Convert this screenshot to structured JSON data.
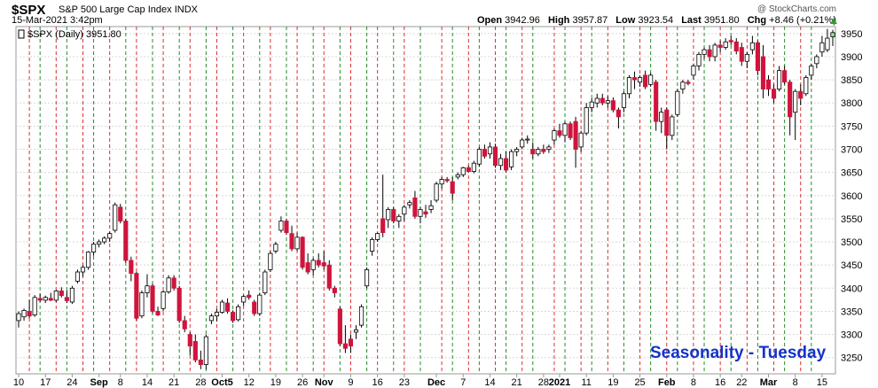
{
  "header": {
    "symbol": "$SPX",
    "name": "S&P 500 Large Cap Index",
    "exchange": "INDX",
    "datetime": "15-Mar-2021 3:42pm",
    "credit": "@ StockCharts.com",
    "open_label": "Open",
    "open_value": "3942.96",
    "high_label": "High",
    "high_value": "3957.87",
    "low_label": "Low",
    "low_value": "3923.54",
    "last_label": "Last",
    "last_value": "3951.80",
    "chg_label": "Chg",
    "chg_value": "+8.46 (+0.21%)"
  },
  "legend": {
    "text": "$SPX (Daily) 3951.80"
  },
  "annotation": "Seasonality - Tuesday",
  "colors": {
    "up": "#ffffff",
    "down": "#d0143c",
    "outline": "#000000",
    "last_bar": "#90ee90",
    "green_line": "#2a8a2a",
    "red_line": "#d83030",
    "grid": "#d8d8d8",
    "seasonality_text": "#1432c8"
  },
  "chart_data": {
    "type": "candlestick",
    "ylim": [
      3215,
      3965
    ],
    "y_ticks": [
      3250,
      3300,
      3350,
      3400,
      3450,
      3500,
      3550,
      3600,
      3650,
      3700,
      3750,
      3800,
      3850,
      3900,
      3950
    ],
    "x_labels": [
      "10",
      "17",
      "24",
      "Sep",
      "8",
      "14",
      "21",
      "28",
      "Oct5",
      "12",
      "19",
      "26",
      "Nov",
      "9",
      "16",
      "23",
      "Dec",
      "7",
      "14",
      "21",
      "28",
      "2021",
      "11",
      "19",
      "25",
      "Feb",
      "8",
      "16",
      "22",
      "Mar",
      "8",
      "15"
    ],
    "x_label_bold": [
      "Sep",
      "Oct5",
      "Nov",
      "Dec",
      "2021",
      "Feb",
      "Mar"
    ],
    "x_label_index": [
      0,
      5,
      10,
      15,
      19,
      24,
      29,
      34,
      38,
      43,
      48,
      53,
      57,
      62,
      67,
      72,
      78,
      83,
      88,
      93,
      98,
      101,
      106,
      111,
      116,
      121,
      126,
      131,
      135,
      140,
      145,
      150
    ],
    "vertical_markers_green_index": [
      4,
      9,
      14,
      20,
      25,
      30,
      35,
      40,
      45,
      50,
      55,
      60,
      65,
      70,
      75,
      81,
      86,
      91,
      96,
      102,
      107,
      113,
      118,
      123,
      128,
      133,
      138,
      143,
      148
    ],
    "vertical_markers_red_index": [
      2,
      7,
      12,
      17,
      22,
      27,
      32,
      37,
      42,
      47,
      52,
      57,
      62,
      67,
      72,
      79,
      84,
      89,
      94,
      100,
      105,
      110,
      116,
      121,
      126,
      131,
      136,
      141,
      146
    ],
    "candles": [
      {
        "o": 3330,
        "h": 3350,
        "l": 3315,
        "c": 3345
      },
      {
        "o": 3338,
        "h": 3356,
        "l": 3330,
        "c": 3352
      },
      {
        "o": 3350,
        "h": 3375,
        "l": 3335,
        "c": 3340
      },
      {
        "o": 3342,
        "h": 3385,
        "l": 3338,
        "c": 3380
      },
      {
        "o": 3378,
        "h": 3388,
        "l": 3370,
        "c": 3374
      },
      {
        "o": 3374,
        "h": 3384,
        "l": 3368,
        "c": 3380
      },
      {
        "o": 3378,
        "h": 3390,
        "l": 3372,
        "c": 3374
      },
      {
        "o": 3374,
        "h": 3396,
        "l": 3370,
        "c": 3394
      },
      {
        "o": 3394,
        "h": 3402,
        "l": 3380,
        "c": 3384
      },
      {
        "o": 3380,
        "h": 3395,
        "l": 3368,
        "c": 3373
      },
      {
        "o": 3370,
        "h": 3405,
        "l": 3366,
        "c": 3400
      },
      {
        "o": 3415,
        "h": 3440,
        "l": 3410,
        "c": 3435
      },
      {
        "o": 3435,
        "h": 3450,
        "l": 3425,
        "c": 3445
      },
      {
        "o": 3445,
        "h": 3480,
        "l": 3440,
        "c": 3478
      },
      {
        "o": 3478,
        "h": 3500,
        "l": 3470,
        "c": 3495
      },
      {
        "o": 3495,
        "h": 3505,
        "l": 3488,
        "c": 3500
      },
      {
        "o": 3500,
        "h": 3512,
        "l": 3495,
        "c": 3508
      },
      {
        "o": 3508,
        "h": 3522,
        "l": 3500,
        "c": 3518
      },
      {
        "o": 3525,
        "h": 3585,
        "l": 3520,
        "c": 3580
      },
      {
        "o": 3575,
        "h": 3582,
        "l": 3540,
        "c": 3545
      },
      {
        "o": 3545,
        "h": 3550,
        "l": 3455,
        "c": 3460
      },
      {
        "o": 3460,
        "h": 3468,
        "l": 3415,
        "c": 3432
      },
      {
        "o": 3432,
        "h": 3435,
        "l": 3330,
        "c": 3335
      },
      {
        "o": 3340,
        "h": 3395,
        "l": 3335,
        "c": 3390
      },
      {
        "o": 3390,
        "h": 3430,
        "l": 3380,
        "c": 3405
      },
      {
        "o": 3405,
        "h": 3410,
        "l": 3345,
        "c": 3350
      },
      {
        "o": 3350,
        "h": 3360,
        "l": 3340,
        "c": 3342
      },
      {
        "o": 3356,
        "h": 3395,
        "l": 3350,
        "c": 3392
      },
      {
        "o": 3392,
        "h": 3428,
        "l": 3388,
        "c": 3422
      },
      {
        "o": 3422,
        "h": 3428,
        "l": 3395,
        "c": 3400
      },
      {
        "o": 3400,
        "h": 3405,
        "l": 3325,
        "c": 3330
      },
      {
        "o": 3330,
        "h": 3340,
        "l": 3305,
        "c": 3312
      },
      {
        "o": 3300,
        "h": 3305,
        "l": 3255,
        "c": 3275
      },
      {
        "o": 3285,
        "h": 3300,
        "l": 3240,
        "c": 3245
      },
      {
        "o": 3245,
        "h": 3265,
        "l": 3225,
        "c": 3235
      },
      {
        "o": 3235,
        "h": 3300,
        "l": 3225,
        "c": 3295
      },
      {
        "o": 3330,
        "h": 3345,
        "l": 3322,
        "c": 3340
      },
      {
        "o": 3340,
        "h": 3355,
        "l": 3328,
        "c": 3348
      },
      {
        "o": 3348,
        "h": 3375,
        "l": 3345,
        "c": 3370
      },
      {
        "o": 3368,
        "h": 3378,
        "l": 3345,
        "c": 3350
      },
      {
        "o": 3348,
        "h": 3352,
        "l": 3325,
        "c": 3330
      },
      {
        "o": 3332,
        "h": 3365,
        "l": 3328,
        "c": 3360
      },
      {
        "o": 3370,
        "h": 3385,
        "l": 3362,
        "c": 3382
      },
      {
        "o": 3385,
        "h": 3395,
        "l": 3375,
        "c": 3380
      },
      {
        "o": 3370,
        "h": 3375,
        "l": 3340,
        "c": 3345
      },
      {
        "o": 3345,
        "h": 3390,
        "l": 3340,
        "c": 3385
      },
      {
        "o": 3390,
        "h": 3440,
        "l": 3385,
        "c": 3435
      },
      {
        "o": 3440,
        "h": 3480,
        "l": 3435,
        "c": 3475
      },
      {
        "o": 3480,
        "h": 3500,
        "l": 3475,
        "c": 3495
      },
      {
        "o": 3525,
        "h": 3555,
        "l": 3520,
        "c": 3545
      },
      {
        "o": 3545,
        "h": 3550,
        "l": 3515,
        "c": 3520
      },
      {
        "o": 3518,
        "h": 3535,
        "l": 3480,
        "c": 3485
      },
      {
        "o": 3485,
        "h": 3520,
        "l": 3480,
        "c": 3510
      },
      {
        "o": 3510,
        "h": 3512,
        "l": 3440,
        "c": 3445
      },
      {
        "o": 3455,
        "h": 3475,
        "l": 3430,
        "c": 3435
      },
      {
        "o": 3440,
        "h": 3465,
        "l": 3428,
        "c": 3460
      },
      {
        "o": 3460,
        "h": 3475,
        "l": 3445,
        "c": 3450
      },
      {
        "o": 3455,
        "h": 3480,
        "l": 3440,
        "c": 3448
      },
      {
        "o": 3450,
        "h": 3460,
        "l": 3395,
        "c": 3400
      },
      {
        "o": 3400,
        "h": 3405,
        "l": 3380,
        "c": 3390
      },
      {
        "o": 3355,
        "h": 3360,
        "l": 3275,
        "c": 3280
      },
      {
        "o": 3280,
        "h": 3320,
        "l": 3260,
        "c": 3270
      },
      {
        "o": 3290,
        "h": 3300,
        "l": 3260,
        "c": 3275
      },
      {
        "o": 3305,
        "h": 3320,
        "l": 3290,
        "c": 3310
      },
      {
        "o": 3320,
        "h": 3365,
        "l": 3315,
        "c": 3360
      },
      {
        "o": 3405,
        "h": 3445,
        "l": 3400,
        "c": 3440
      },
      {
        "o": 3480,
        "h": 3510,
        "l": 3470,
        "c": 3505
      },
      {
        "o": 3505,
        "h": 3520,
        "l": 3500,
        "c": 3518
      },
      {
        "o": 3550,
        "h": 3645,
        "l": 3510,
        "c": 3520
      },
      {
        "o": 3548,
        "h": 3575,
        "l": 3530,
        "c": 3570
      },
      {
        "o": 3570,
        "h": 3575,
        "l": 3540,
        "c": 3545
      },
      {
        "o": 3545,
        "h": 3560,
        "l": 3530,
        "c": 3555
      },
      {
        "o": 3560,
        "h": 3580,
        "l": 3545,
        "c": 3575
      },
      {
        "o": 3580,
        "h": 3590,
        "l": 3572,
        "c": 3585
      },
      {
        "o": 3595,
        "h": 3610,
        "l": 3550,
        "c": 3555
      },
      {
        "o": 3555,
        "h": 3575,
        "l": 3540,
        "c": 3570
      },
      {
        "o": 3565,
        "h": 3580,
        "l": 3552,
        "c": 3560
      },
      {
        "o": 3570,
        "h": 3590,
        "l": 3562,
        "c": 3578
      },
      {
        "o": 3590,
        "h": 3630,
        "l": 3585,
        "c": 3625
      },
      {
        "o": 3625,
        "h": 3640,
        "l": 3615,
        "c": 3635
      },
      {
        "o": 3635,
        "h": 3640,
        "l": 3628,
        "c": 3632
      },
      {
        "o": 3630,
        "h": 3640,
        "l": 3590,
        "c": 3605
      },
      {
        "o": 3640,
        "h": 3650,
        "l": 3635,
        "c": 3645
      },
      {
        "o": 3645,
        "h": 3662,
        "l": 3640,
        "c": 3660
      },
      {
        "o": 3660,
        "h": 3665,
        "l": 3650,
        "c": 3652
      },
      {
        "o": 3652,
        "h": 3675,
        "l": 3648,
        "c": 3670
      },
      {
        "o": 3668,
        "h": 3705,
        "l": 3662,
        "c": 3700
      },
      {
        "o": 3700,
        "h": 3710,
        "l": 3680,
        "c": 3685
      },
      {
        "o": 3690,
        "h": 3715,
        "l": 3680,
        "c": 3705
      },
      {
        "o": 3705,
        "h": 3712,
        "l": 3660,
        "c": 3665
      },
      {
        "o": 3665,
        "h": 3690,
        "l": 3655,
        "c": 3680
      },
      {
        "o": 3680,
        "h": 3695,
        "l": 3650,
        "c": 3655
      },
      {
        "o": 3662,
        "h": 3700,
        "l": 3655,
        "c": 3695
      },
      {
        "o": 3695,
        "h": 3705,
        "l": 3685,
        "c": 3700
      },
      {
        "o": 3705,
        "h": 3725,
        "l": 3700,
        "c": 3720
      },
      {
        "o": 3720,
        "h": 3730,
        "l": 3712,
        "c": 3722
      },
      {
        "o": 3700,
        "h": 3715,
        "l": 3680,
        "c": 3690
      },
      {
        "o": 3690,
        "h": 3705,
        "l": 3685,
        "c": 3700
      },
      {
        "o": 3700,
        "h": 3710,
        "l": 3690,
        "c": 3695
      },
      {
        "o": 3700,
        "h": 3710,
        "l": 3692,
        "c": 3705
      },
      {
        "o": 3720,
        "h": 3745,
        "l": 3710,
        "c": 3740
      },
      {
        "o": 3740,
        "h": 3755,
        "l": 3725,
        "c": 3730
      },
      {
        "o": 3730,
        "h": 3760,
        "l": 3715,
        "c": 3755
      },
      {
        "o": 3755,
        "h": 3760,
        "l": 3720,
        "c": 3725
      },
      {
        "o": 3760,
        "h": 3770,
        "l": 3660,
        "c": 3700
      },
      {
        "o": 3705,
        "h": 3740,
        "l": 3695,
        "c": 3735
      },
      {
        "o": 3735,
        "h": 3800,
        "l": 3730,
        "c": 3790
      },
      {
        "o": 3790,
        "h": 3810,
        "l": 3780,
        "c": 3802
      },
      {
        "o": 3800,
        "h": 3820,
        "l": 3790,
        "c": 3810
      },
      {
        "o": 3810,
        "h": 3820,
        "l": 3795,
        "c": 3800
      },
      {
        "o": 3800,
        "h": 3815,
        "l": 3790,
        "c": 3805
      },
      {
        "o": 3805,
        "h": 3812,
        "l": 3780,
        "c": 3785
      },
      {
        "o": 3785,
        "h": 3790,
        "l": 3745,
        "c": 3770
      },
      {
        "o": 3790,
        "h": 3825,
        "l": 3780,
        "c": 3820
      },
      {
        "o": 3820,
        "h": 3860,
        "l": 3810,
        "c": 3855
      },
      {
        "o": 3855,
        "h": 3868,
        "l": 3830,
        "c": 3850
      },
      {
        "o": 3845,
        "h": 3860,
        "l": 3835,
        "c": 3855
      },
      {
        "o": 3860,
        "h": 3870,
        "l": 3830,
        "c": 3835
      },
      {
        "o": 3840,
        "h": 3865,
        "l": 3835,
        "c": 3860
      },
      {
        "o": 3845,
        "h": 3850,
        "l": 3740,
        "c": 3760
      },
      {
        "o": 3760,
        "h": 3790,
        "l": 3735,
        "c": 3780
      },
      {
        "o": 3785,
        "h": 3790,
        "l": 3700,
        "c": 3730
      },
      {
        "o": 3730,
        "h": 3775,
        "l": 3720,
        "c": 3770
      },
      {
        "o": 3775,
        "h": 3830,
        "l": 3770,
        "c": 3825
      },
      {
        "o": 3830,
        "h": 3850,
        "l": 3820,
        "c": 3845
      },
      {
        "o": 3845,
        "h": 3850,
        "l": 3838,
        "c": 3842
      },
      {
        "o": 3860,
        "h": 3885,
        "l": 3850,
        "c": 3880
      },
      {
        "o": 3880,
        "h": 3910,
        "l": 3870,
        "c": 3905
      },
      {
        "o": 3905,
        "h": 3920,
        "l": 3895,
        "c": 3915
      },
      {
        "o": 3915,
        "h": 3925,
        "l": 3890,
        "c": 3900
      },
      {
        "o": 3900,
        "h": 3930,
        "l": 3890,
        "c": 3925
      },
      {
        "o": 3925,
        "h": 3935,
        "l": 3910,
        "c": 3920
      },
      {
        "o": 3920,
        "h": 3940,
        "l": 3915,
        "c": 3932
      },
      {
        "o": 3935,
        "h": 3945,
        "l": 3925,
        "c": 3932
      },
      {
        "o": 3932,
        "h": 3940,
        "l": 3905,
        "c": 3912
      },
      {
        "o": 3920,
        "h": 3930,
        "l": 3880,
        "c": 3890
      },
      {
        "o": 3890,
        "h": 3910,
        "l": 3875,
        "c": 3905
      },
      {
        "o": 3915,
        "h": 3945,
        "l": 3905,
        "c": 3930
      },
      {
        "o": 3930,
        "h": 3935,
        "l": 3860,
        "c": 3870
      },
      {
        "o": 3900,
        "h": 3925,
        "l": 3810,
        "c": 3830
      },
      {
        "o": 3850,
        "h": 3860,
        "l": 3815,
        "c": 3830
      },
      {
        "o": 3830,
        "h": 3840,
        "l": 3800,
        "c": 3810
      },
      {
        "o": 3830,
        "h": 3880,
        "l": 3825,
        "c": 3870
      },
      {
        "o": 3870,
        "h": 3880,
        "l": 3840,
        "c": 3845
      },
      {
        "o": 3845,
        "h": 3850,
        "l": 3730,
        "c": 3770
      },
      {
        "o": 3780,
        "h": 3830,
        "l": 3720,
        "c": 3825
      },
      {
        "o": 3825,
        "h": 3840,
        "l": 3795,
        "c": 3810
      },
      {
        "o": 3820,
        "h": 3860,
        "l": 3815,
        "c": 3855
      },
      {
        "o": 3860,
        "h": 3885,
        "l": 3850,
        "c": 3880
      },
      {
        "o": 3885,
        "h": 3905,
        "l": 3875,
        "c": 3900
      },
      {
        "o": 3910,
        "h": 3945,
        "l": 3900,
        "c": 3930
      },
      {
        "o": 3915,
        "h": 3960,
        "l": 3910,
        "c": 3940
      },
      {
        "o": 3943,
        "h": 3958,
        "l": 3923,
        "c": 3952
      }
    ]
  }
}
